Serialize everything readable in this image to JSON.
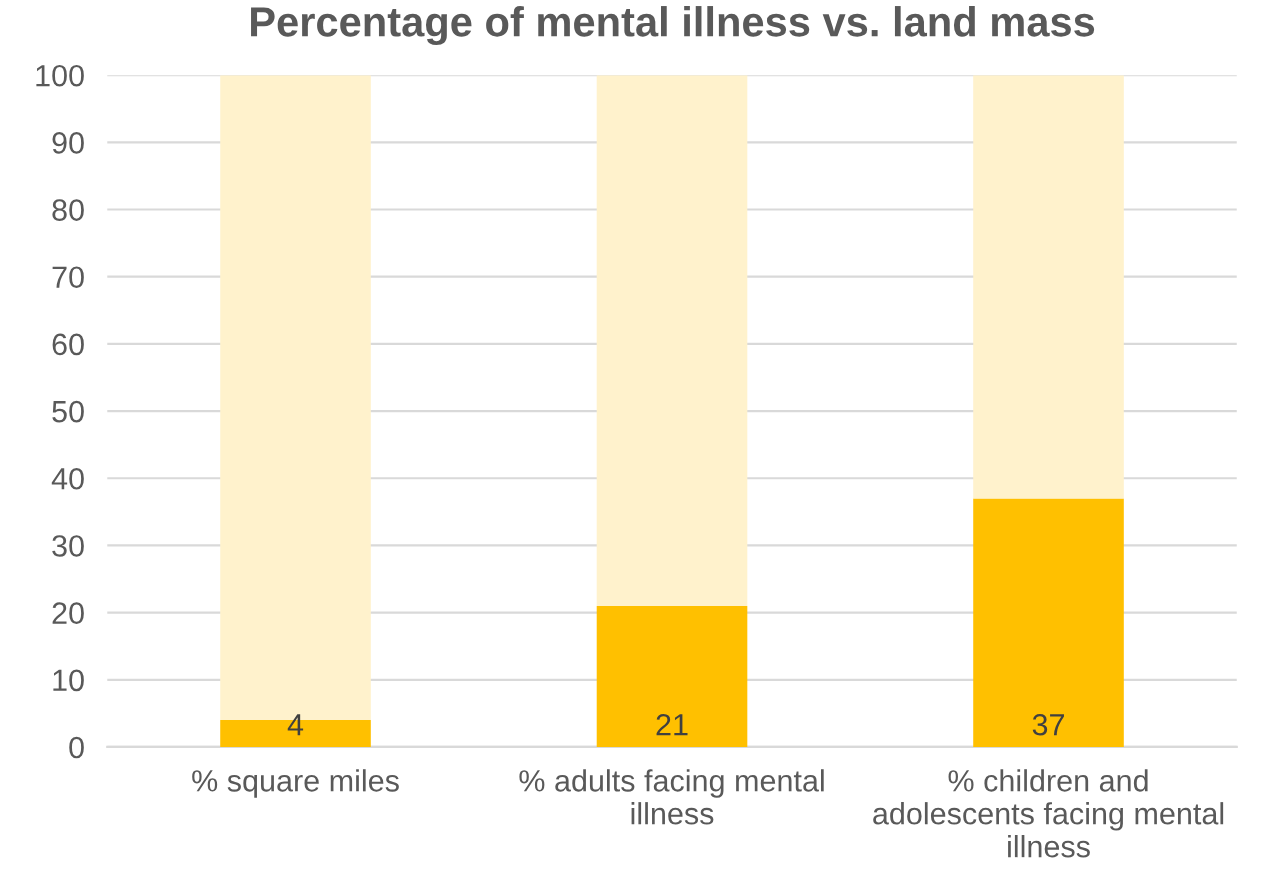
{
  "chart_data": {
    "type": "bar",
    "title": "Percentage of mental illness vs. land mass",
    "categories": [
      "% square miles",
      "% adults facing mental illness",
      "% children and adolescents facing mental illness"
    ],
    "stacked": true,
    "series": [
      {
        "color": "#ffc000",
        "values": [
          4,
          21,
          37
        ],
        "value_labels": [
          "4",
          "21",
          "37"
        ]
      },
      {
        "color": "#fff2cc",
        "values": [
          96,
          79,
          63
        ]
      }
    ],
    "ylim": [
      0,
      100
    ],
    "yticks": [
      0,
      10,
      20,
      30,
      40,
      50,
      60,
      70,
      80,
      90,
      100
    ],
    "grid": "y"
  }
}
